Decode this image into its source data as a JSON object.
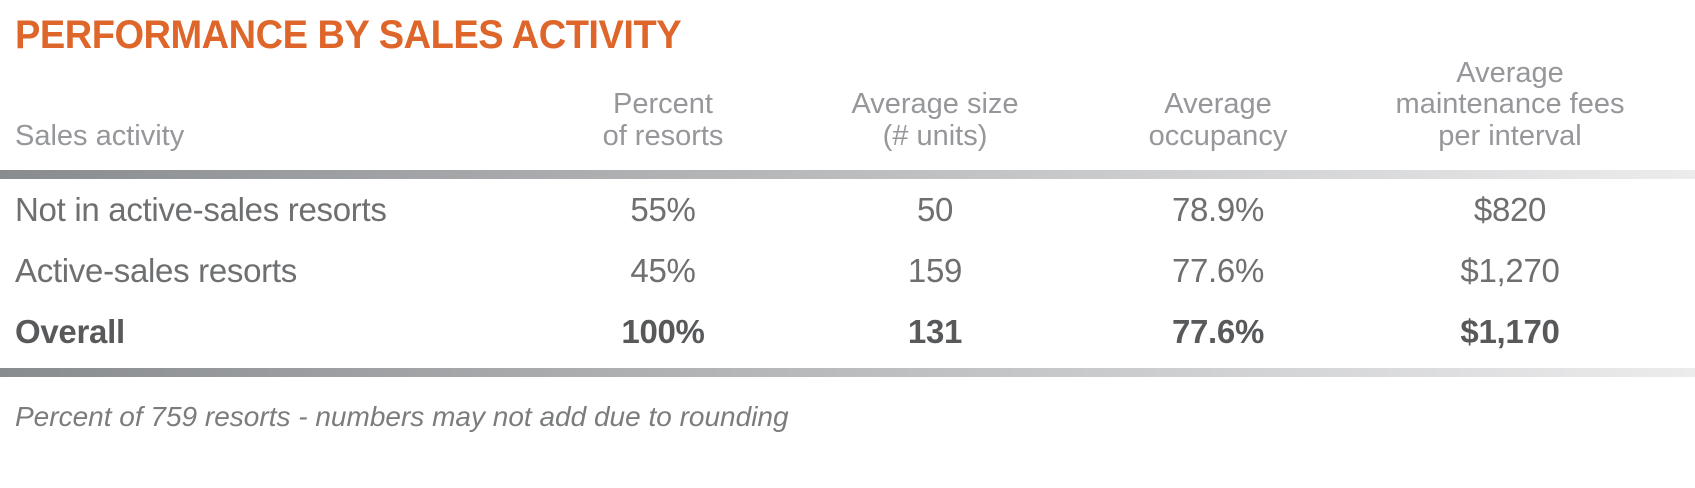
{
  "title": "PERFORMANCE BY SALES ACTIVITY",
  "colors": {
    "title_orange": "#DE662A",
    "header_gray": "#95979A",
    "row_gray": "#6D6F71",
    "overall_dark": "#58595B",
    "divider_start": "#898C8F",
    "divider_end": "#ECECED",
    "footnote_gray": "#7A7C7E"
  },
  "table": {
    "headers": {
      "sales_activity": "Sales activity",
      "percent_of_resorts": "Percent\nof resorts",
      "average_size": "Average size\n(# units)",
      "average_occupancy": "Average\noccupancy",
      "average_maintenance_fees": "Average\nmaintenance fees\nper interval"
    },
    "rows": [
      {
        "label": "Not in active-sales resorts",
        "percent_of_resorts": "55%",
        "average_size": "50",
        "average_occupancy": "78.9%",
        "average_maintenance_fees": "$820"
      },
      {
        "label": "Active-sales resorts",
        "percent_of_resorts": "45%",
        "average_size": "159",
        "average_occupancy": "77.6%",
        "average_maintenance_fees": "$1,270"
      },
      {
        "label": "Overall",
        "percent_of_resorts": "100%",
        "average_size": "131",
        "average_occupancy": "77.6%",
        "average_maintenance_fees": "$1,170"
      }
    ]
  },
  "footnote": "Percent of 759 resorts - numbers may not add due to rounding",
  "chart_data": {
    "type": "table",
    "title": "PERFORMANCE BY SALES ACTIVITY",
    "columns": [
      "Sales activity",
      "Percent of resorts",
      "Average size (# units)",
      "Average occupancy",
      "Average maintenance fees per interval"
    ],
    "rows": [
      [
        "Not in active-sales resorts",
        "55%",
        "50",
        "78.9%",
        "$820"
      ],
      [
        "Active-sales resorts",
        "45%",
        "159",
        "77.6%",
        "$1,270"
      ],
      [
        "Overall",
        "100%",
        "131",
        "77.6%",
        "$1,170"
      ]
    ],
    "footnote": "Percent of 759 resorts - numbers may not add due to rounding"
  }
}
